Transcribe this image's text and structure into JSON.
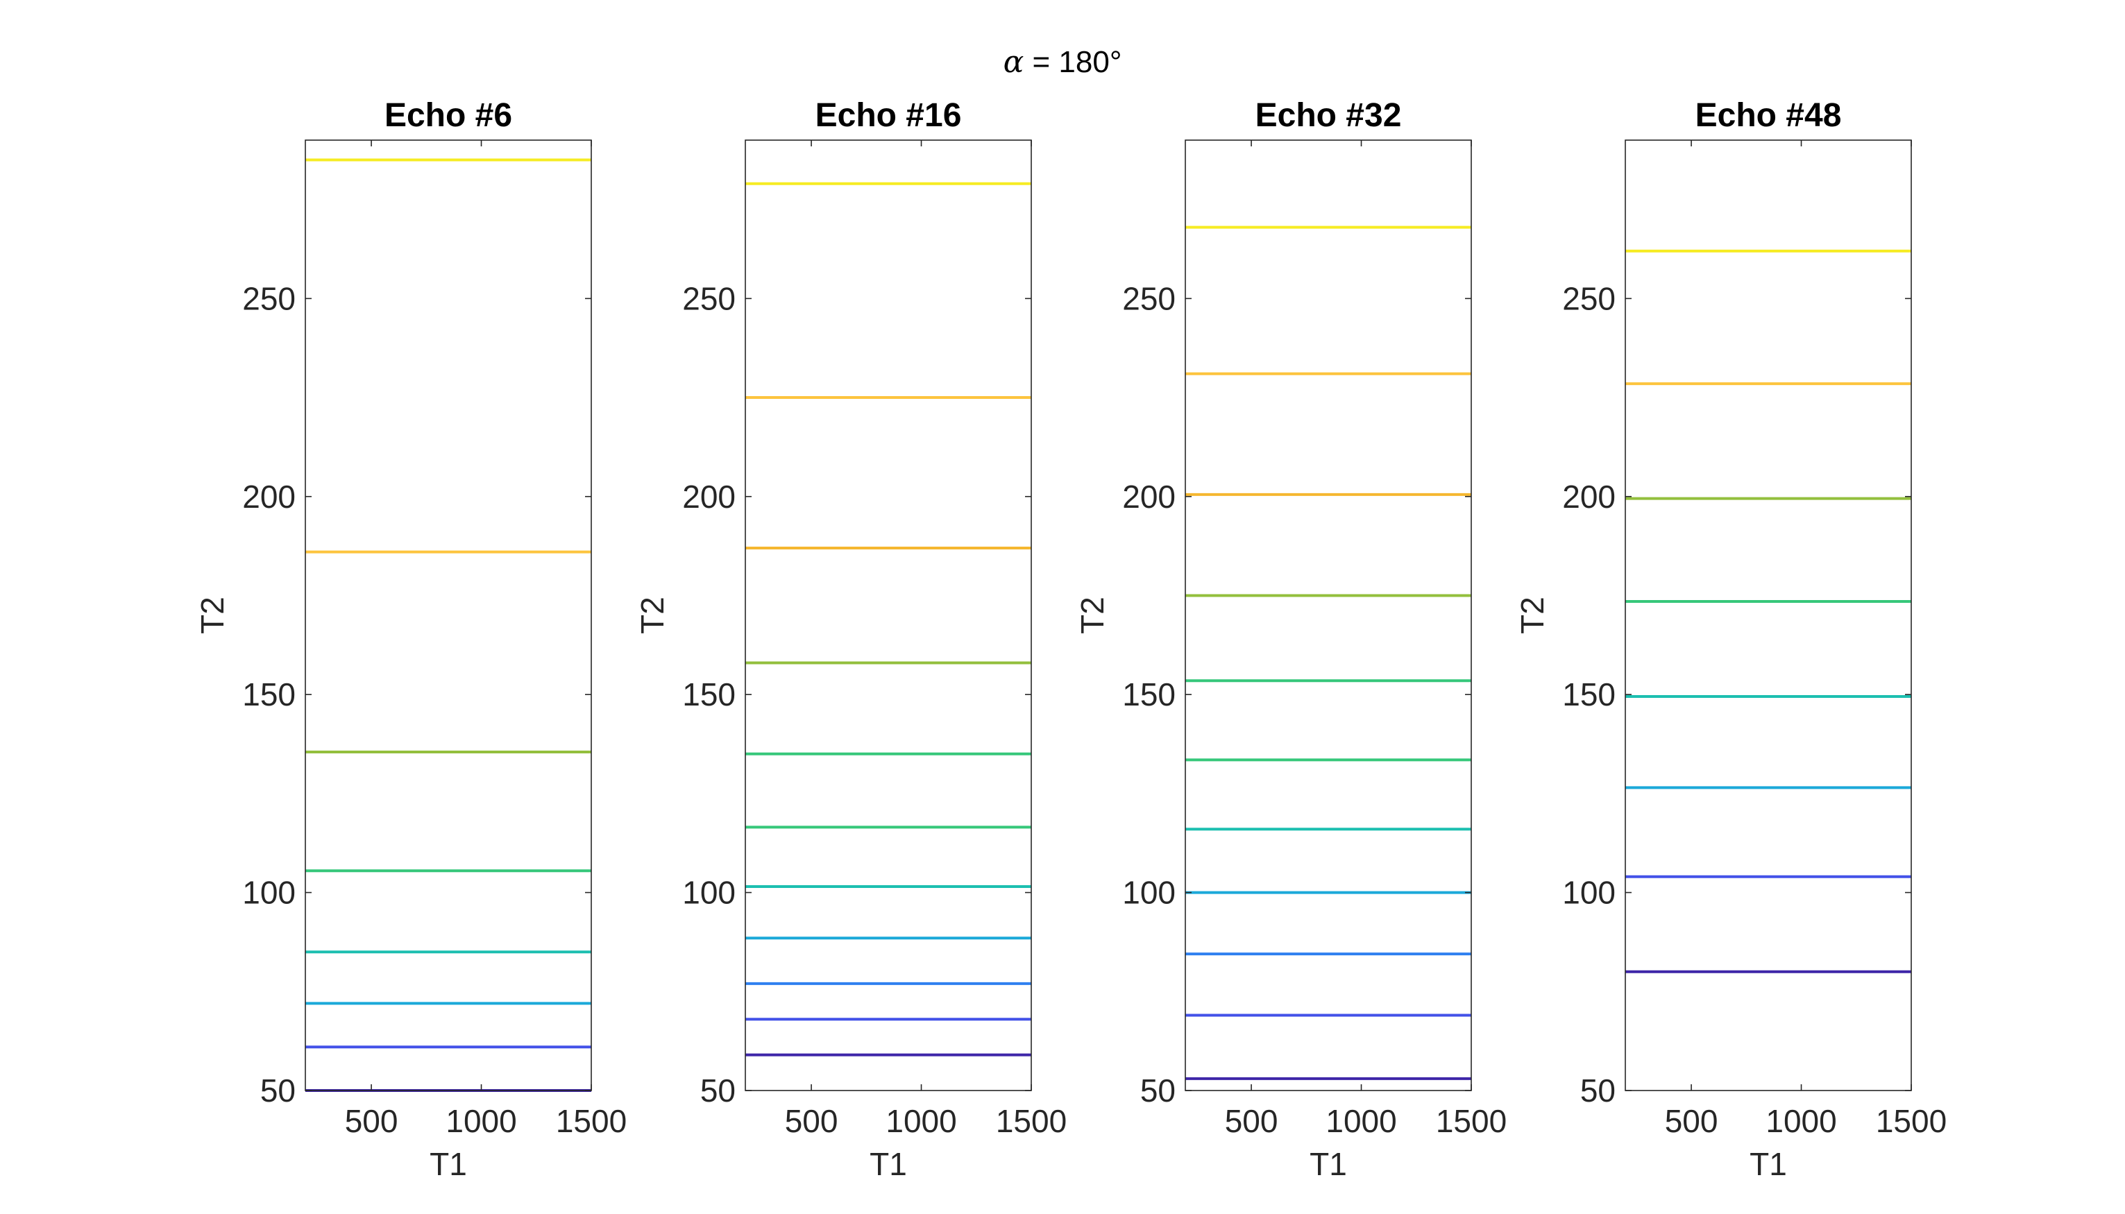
{
  "figure": {
    "suptitle_symbol": "α",
    "suptitle_text": " = 180°"
  },
  "colors": {
    "axis": "#262626",
    "lines": [
      "#3e26a8",
      "#4352e8",
      "#2f80f0",
      "#1ba9d9",
      "#1cbfb0",
      "#36c77a",
      "#93bf3d",
      "#f5b730",
      "#fdc43e",
      "#f6ec23"
    ]
  },
  "chart_data": [
    {
      "type": "line",
      "title": "Echo #6",
      "xlabel": "T1",
      "ylabel": "T2",
      "xlim": [
        200,
        1500
      ],
      "ylim": [
        50,
        290
      ],
      "xticks": [
        500,
        1000,
        1500
      ],
      "yticks": [
        50,
        100,
        150,
        200,
        250
      ],
      "grid": false,
      "x": [
        200,
        1500
      ],
      "series": [
        {
          "values": [
            50,
            50
          ]
        },
        {
          "values": [
            61,
            61
          ]
        },
        {
          "values": [
            72,
            72
          ]
        },
        {
          "values": [
            85,
            85
          ]
        },
        {
          "values": [
            105.5,
            105.5
          ]
        },
        {
          "values": [
            135.5,
            135.5
          ]
        },
        {
          "values": [
            186,
            186
          ]
        },
        {
          "values": [
            285,
            285
          ]
        }
      ]
    },
    {
      "type": "line",
      "title": "Echo #16",
      "xlabel": "T1",
      "ylabel": "T2",
      "xlim": [
        200,
        1500
      ],
      "ylim": [
        50,
        290
      ],
      "xticks": [
        500,
        1000,
        1500
      ],
      "yticks": [
        50,
        100,
        150,
        200,
        250
      ],
      "grid": false,
      "x": [
        200,
        1500
      ],
      "series": [
        {
          "values": [
            59,
            59
          ]
        },
        {
          "values": [
            68,
            68
          ]
        },
        {
          "values": [
            77,
            77
          ]
        },
        {
          "values": [
            88.5,
            88.5
          ]
        },
        {
          "values": [
            101.5,
            101.5
          ]
        },
        {
          "values": [
            116.5,
            116.5
          ]
        },
        {
          "values": [
            135,
            135
          ]
        },
        {
          "values": [
            158,
            158
          ]
        },
        {
          "values": [
            187,
            187
          ]
        },
        {
          "values": [
            225,
            225
          ]
        },
        {
          "values": [
            279,
            279
          ]
        }
      ]
    },
    {
      "type": "line",
      "title": "Echo #32",
      "xlabel": "T1",
      "ylabel": "T2",
      "xlim": [
        200,
        1500
      ],
      "ylim": [
        50,
        290
      ],
      "xticks": [
        500,
        1000,
        1500
      ],
      "yticks": [
        50,
        100,
        150,
        200,
        250
      ],
      "grid": false,
      "x": [
        200,
        1500
      ],
      "series": [
        {
          "values": [
            53,
            53
          ]
        },
        {
          "values": [
            69,
            69
          ]
        },
        {
          "values": [
            84.5,
            84.5
          ]
        },
        {
          "values": [
            100,
            100
          ]
        },
        {
          "values": [
            116,
            116
          ]
        },
        {
          "values": [
            133.5,
            133.5
          ]
        },
        {
          "values": [
            153.5,
            153.5
          ]
        },
        {
          "values": [
            175,
            175
          ]
        },
        {
          "values": [
            200.5,
            200.5
          ]
        },
        {
          "values": [
            231,
            231
          ]
        },
        {
          "values": [
            268,
            268
          ]
        }
      ]
    },
    {
      "type": "line",
      "title": "Echo #48",
      "xlabel": "T1",
      "ylabel": "T2",
      "xlim": [
        200,
        1500
      ],
      "ylim": [
        50,
        290
      ],
      "xticks": [
        500,
        1000,
        1500
      ],
      "yticks": [
        50,
        100,
        150,
        200,
        250
      ],
      "grid": false,
      "x": [
        200,
        1500
      ],
      "series": [
        {
          "values": [
            80,
            80
          ]
        },
        {
          "values": [
            104,
            104
          ]
        },
        {
          "values": [
            126.5,
            126.5
          ]
        },
        {
          "values": [
            149.5,
            149.5
          ]
        },
        {
          "values": [
            173.5,
            173.5
          ]
        },
        {
          "values": [
            199.5,
            199.5
          ]
        },
        {
          "values": [
            228.5,
            228.5
          ]
        },
        {
          "values": [
            262,
            262
          ]
        }
      ]
    }
  ]
}
